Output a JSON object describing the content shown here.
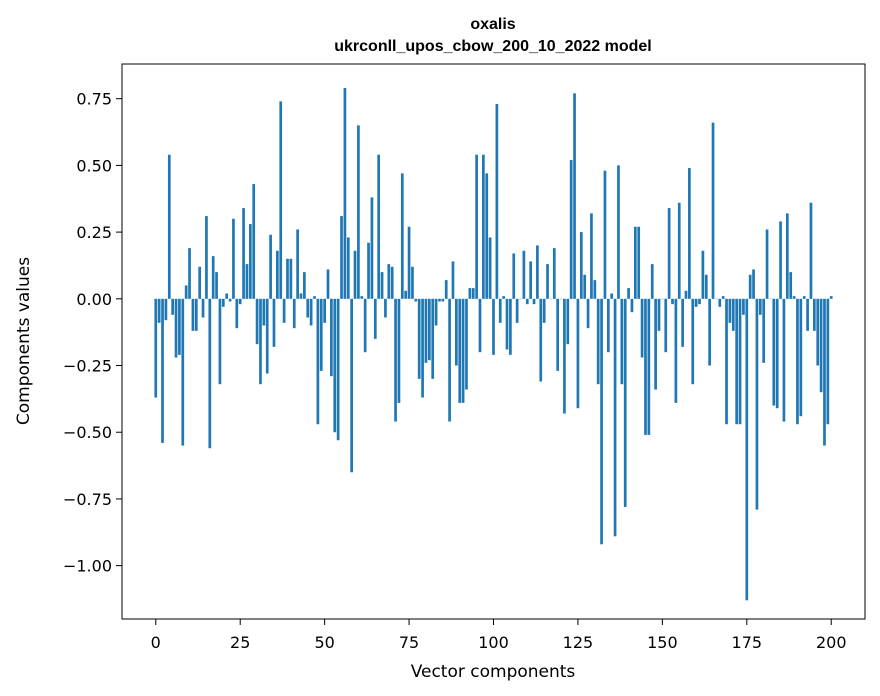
{
  "chart_data": {
    "type": "bar",
    "title": "oxalis",
    "subtitle": "ukrconll_upos_cbow_200_10_2022 model",
    "xlabel": "Vector components",
    "ylabel": "Components values",
    "xlim": [
      -10,
      210
    ],
    "ylim": [
      -1.2,
      0.88
    ],
    "xticks": [
      0,
      25,
      50,
      75,
      100,
      125,
      150,
      175,
      200
    ],
    "yticks": [
      0.75,
      0.5,
      0.25,
      0.0,
      -0.25,
      -0.5,
      -0.75,
      -1.0
    ],
    "xtick_labels": [
      "0",
      "25",
      "50",
      "75",
      "100",
      "125",
      "150",
      "175",
      "200"
    ],
    "ytick_labels": [
      "0.75",
      "0.50",
      "0.25",
      "0.00",
      "−0.25",
      "−0.50",
      "−0.75",
      "−1.00"
    ],
    "bar_color": "#1f77b4",
    "grid": false,
    "values": [
      -0.37,
      -0.09,
      -0.54,
      -0.08,
      0.54,
      -0.06,
      -0.22,
      -0.21,
      -0.55,
      0.05,
      0.19,
      -0.12,
      -0.12,
      0.12,
      -0.07,
      0.31,
      -0.56,
      0.16,
      0.1,
      -0.32,
      -0.03,
      0.02,
      -0.01,
      0.3,
      -0.11,
      -0.02,
      0.34,
      0.13,
      0.28,
      0.43,
      -0.17,
      -0.32,
      -0.1,
      -0.28,
      0.24,
      -0.18,
      0.18,
      0.74,
      -0.09,
      0.15,
      0.15,
      -0.11,
      0.26,
      0.02,
      0.1,
      -0.07,
      -0.1,
      0.01,
      -0.47,
      -0.27,
      -0.09,
      0.11,
      -0.29,
      -0.5,
      -0.53,
      0.31,
      0.79,
      0.23,
      -0.65,
      0.18,
      0.65,
      0.01,
      -0.2,
      0.21,
      0.38,
      -0.15,
      0.54,
      0.1,
      -0.07,
      0.13,
      0.12,
      -0.46,
      -0.39,
      0.47,
      0.03,
      0.27,
      0.12,
      -0.01,
      -0.3,
      -0.37,
      -0.24,
      -0.23,
      -0.3,
      -0.1,
      -0.01,
      -0.01,
      0.07,
      -0.46,
      0.14,
      -0.25,
      -0.39,
      -0.39,
      -0.34,
      0.04,
      0.04,
      0.54,
      -0.2,
      0.54,
      0.47,
      0.23,
      -0.21,
      0.73,
      -0.09,
      0.01,
      -0.19,
      -0.21,
      0.17,
      -0.09,
      0.0,
      0.18,
      -0.02,
      0.14,
      -0.02,
      0.2,
      -0.31,
      -0.09,
      0.13,
      0.0,
      0.19,
      -0.27,
      0.0,
      -0.43,
      -0.17,
      0.52,
      0.77,
      -0.41,
      0.25,
      0.09,
      -0.11,
      0.32,
      0.07,
      -0.32,
      -0.92,
      0.48,
      -0.2,
      0.02,
      -0.89,
      0.5,
      -0.32,
      -0.78,
      0.04,
      -0.05,
      0.27,
      0.27,
      -0.22,
      -0.51,
      -0.51,
      0.13,
      -0.34,
      -0.12,
      0.0,
      -0.2,
      0.34,
      -0.02,
      -0.39,
      0.36,
      -0.18,
      0.03,
      0.49,
      -0.32,
      -0.03,
      -0.02,
      0.18,
      0.09,
      -0.25,
      0.66,
      0.0,
      -0.03,
      0.01,
      -0.47,
      -0.09,
      -0.12,
      -0.47,
      -0.47,
      -0.06,
      -1.13,
      0.09,
      0.11,
      -0.79,
      -0.06,
      -0.24,
      0.26,
      0.0,
      -0.4,
      -0.41,
      0.29,
      -0.46,
      0.32,
      0.1,
      0.01,
      -0.47,
      -0.44,
      0.01,
      -0.12,
      0.36,
      -0.12,
      -0.25,
      -0.35,
      -0.55,
      -0.47,
      0.01
    ]
  }
}
